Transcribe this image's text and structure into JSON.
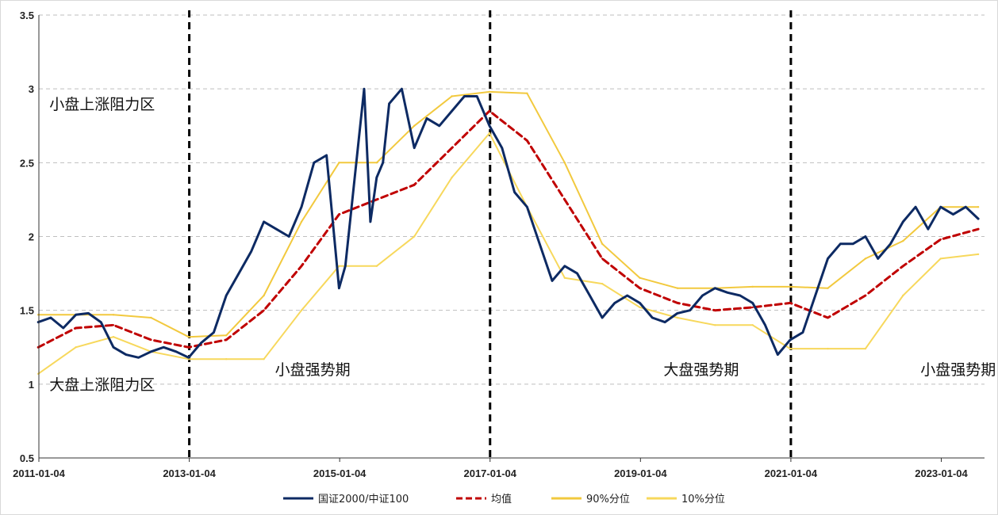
{
  "chart_data": {
    "type": "line",
    "title": "",
    "xlabel": "",
    "ylabel": "",
    "ylim": [
      0.5,
      3.5
    ],
    "yticks": [
      "0.5",
      "1",
      "1.5",
      "2",
      "2.5",
      "3",
      "3.5"
    ],
    "xticks": [
      "2011-01-04",
      "2013-01-04",
      "2015-01-04",
      "2017-01-04",
      "2019-01-04",
      "2021-01-04",
      "2023-01-04"
    ],
    "grid": "horizontal dashed",
    "legend_position": "bottom",
    "regime_dividers": [
      "2013-01-04",
      "2017-01-04",
      "2021-01-04"
    ],
    "annotations": [
      {
        "text": "小盘上涨阻力区",
        "x": "2011-01",
        "y": 2.9
      },
      {
        "text": "大盘上涨阻力区",
        "x": "2011-01",
        "y": 1.0
      },
      {
        "text": "小盘强势期",
        "x": "2014-01",
        "y": 1.1
      },
      {
        "text": "大盘强势期",
        "x": "2019-03",
        "y": 1.1
      },
      {
        "text": "小盘强势期",
        "x": "2022-08",
        "y": 1.1
      }
    ],
    "series": [
      {
        "name": "国证2000/中证100",
        "color": "#0d2a63",
        "style": "solid",
        "x": [
          "2011-01",
          "2011-03",
          "2011-05",
          "2011-07",
          "2011-09",
          "2011-11",
          "2012-01",
          "2012-03",
          "2012-05",
          "2012-07",
          "2012-09",
          "2012-11",
          "2013-01",
          "2013-03",
          "2013-05",
          "2013-07",
          "2013-09",
          "2013-11",
          "2014-01",
          "2014-03",
          "2014-05",
          "2014-07",
          "2014-09",
          "2014-11",
          "2015-01",
          "2015-02",
          "2015-03",
          "2015-04",
          "2015-05",
          "2015-06",
          "2015-07",
          "2015-08",
          "2015-09",
          "2015-11",
          "2016-01",
          "2016-03",
          "2016-05",
          "2016-07",
          "2016-09",
          "2016-11",
          "2017-01",
          "2017-03",
          "2017-05",
          "2017-07",
          "2017-09",
          "2017-11",
          "2018-01",
          "2018-03",
          "2018-05",
          "2018-07",
          "2018-09",
          "2018-11",
          "2019-01",
          "2019-03",
          "2019-05",
          "2019-07",
          "2019-09",
          "2019-11",
          "2020-01",
          "2020-03",
          "2020-05",
          "2020-07",
          "2020-09",
          "2020-11",
          "2021-01",
          "2021-03",
          "2021-05",
          "2021-07",
          "2021-09",
          "2021-11",
          "2022-01",
          "2022-03",
          "2022-05",
          "2022-07",
          "2022-09",
          "2022-11",
          "2023-01",
          "2023-03",
          "2023-05",
          "2023-07"
        ],
        "values": [
          1.42,
          1.45,
          1.38,
          1.47,
          1.48,
          1.42,
          1.25,
          1.2,
          1.18,
          1.22,
          1.25,
          1.22,
          1.18,
          1.28,
          1.35,
          1.6,
          1.75,
          1.9,
          2.1,
          2.05,
          2.0,
          2.2,
          2.5,
          2.55,
          1.65,
          1.8,
          2.2,
          2.6,
          3.0,
          2.1,
          2.4,
          2.5,
          2.9,
          3.0,
          2.6,
          2.8,
          2.75,
          2.85,
          2.95,
          2.95,
          2.75,
          2.6,
          2.3,
          2.2,
          1.95,
          1.7,
          1.8,
          1.75,
          1.6,
          1.45,
          1.55,
          1.6,
          1.55,
          1.45,
          1.42,
          1.48,
          1.5,
          1.6,
          1.65,
          1.62,
          1.6,
          1.55,
          1.4,
          1.2,
          1.3,
          1.35,
          1.6,
          1.85,
          1.95,
          1.95,
          2.0,
          1.85,
          1.95,
          2.1,
          2.2,
          2.05,
          2.2,
          2.15,
          2.2,
          2.12
        ]
      },
      {
        "name": "均值",
        "color": "#c00000",
        "style": "dashed",
        "x": [
          "2011-01",
          "2011-07",
          "2012-01",
          "2012-07",
          "2013-01",
          "2013-07",
          "2014-01",
          "2014-07",
          "2015-01",
          "2015-07",
          "2016-01",
          "2016-07",
          "2017-01",
          "2017-07",
          "2018-01",
          "2018-07",
          "2019-01",
          "2019-07",
          "2020-01",
          "2020-07",
          "2021-01",
          "2021-07",
          "2022-01",
          "2022-07",
          "2023-01",
          "2023-07"
        ],
        "values": [
          1.25,
          1.38,
          1.4,
          1.3,
          1.25,
          1.3,
          1.5,
          1.8,
          2.15,
          2.25,
          2.35,
          2.6,
          2.85,
          2.65,
          2.25,
          1.85,
          1.65,
          1.55,
          1.5,
          1.52,
          1.55,
          1.45,
          1.6,
          1.8,
          1.98,
          2.05
        ]
      },
      {
        "name": "90%分位",
        "color": "#f2c93e",
        "style": "solid",
        "x": [
          "2011-01",
          "2012-01",
          "2012-07",
          "2013-01",
          "2013-07",
          "2014-01",
          "2014-07",
          "2015-01",
          "2015-07",
          "2016-01",
          "2016-07",
          "2017-01",
          "2017-07",
          "2018-01",
          "2018-07",
          "2019-01",
          "2019-07",
          "2020-01",
          "2020-07",
          "2021-01",
          "2021-07",
          "2022-01",
          "2022-07",
          "2023-01",
          "2023-07"
        ],
        "values": [
          1.47,
          1.47,
          1.45,
          1.32,
          1.33,
          1.6,
          2.1,
          2.5,
          2.5,
          2.75,
          2.95,
          2.98,
          2.97,
          2.5,
          1.95,
          1.72,
          1.65,
          1.65,
          1.66,
          1.66,
          1.65,
          1.85,
          1.97,
          2.2,
          2.2
        ]
      },
      {
        "name": "10%分位",
        "color": "#f7d85c",
        "style": "solid",
        "x": [
          "2011-01",
          "2011-07",
          "2012-01",
          "2012-07",
          "2013-01",
          "2013-07",
          "2014-01",
          "2014-07",
          "2015-01",
          "2015-07",
          "2016-01",
          "2016-07",
          "2017-01",
          "2017-07",
          "2018-01",
          "2018-07",
          "2019-01",
          "2019-07",
          "2020-01",
          "2020-07",
          "2021-01",
          "2021-07",
          "2022-01",
          "2022-07",
          "2023-01",
          "2023-07"
        ],
        "values": [
          1.07,
          1.25,
          1.32,
          1.22,
          1.17,
          1.17,
          1.17,
          1.5,
          1.8,
          1.8,
          2.0,
          2.4,
          2.7,
          2.2,
          1.72,
          1.68,
          1.52,
          1.45,
          1.4,
          1.4,
          1.24,
          1.24,
          1.24,
          1.6,
          1.85,
          1.88
        ]
      }
    ]
  }
}
